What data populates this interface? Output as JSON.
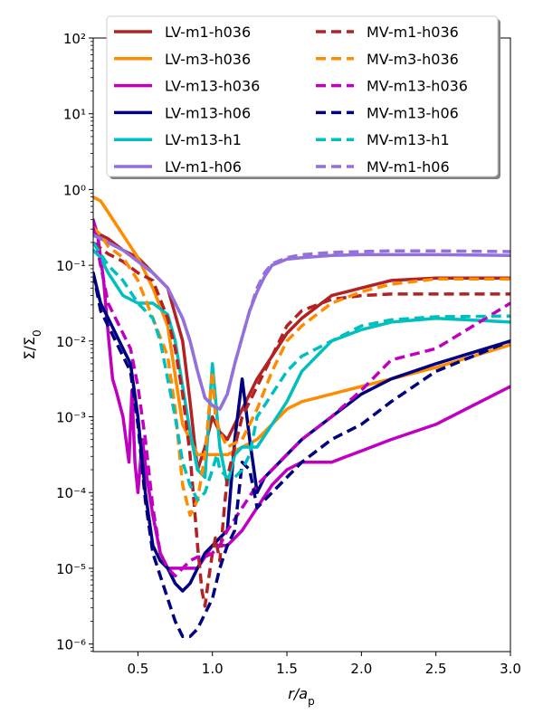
{
  "chart_data": {
    "type": "line",
    "title": "",
    "xlabel": "r/a_p",
    "ylabel": "Σ/Σ_0",
    "xlim": [
      0.2,
      3.0
    ],
    "ylim_log10": [
      -6.1,
      2.0
    ],
    "yscale": "log",
    "x_ticks": [
      0.5,
      1.0,
      1.5,
      2.0,
      2.5,
      3.0
    ],
    "x_tick_labels": [
      "0.5",
      "1.0",
      "1.5",
      "2.0",
      "2.5",
      "3.0"
    ],
    "y_ticks_log10": [
      -6,
      -5,
      -4,
      -3,
      -2,
      -1,
      0,
      1,
      2
    ],
    "y_tick_labels": [
      "10⁻⁶",
      "10⁻⁵",
      "10⁻⁴",
      "10⁻³",
      "10⁻²",
      "10⁻¹",
      "10⁰",
      "10¹",
      "10²"
    ],
    "legend_position": "top",
    "series": [
      {
        "name": "LV-m1-h036",
        "color": "#b22222",
        "dash": "solid",
        "x": [
          0.2,
          0.3,
          0.4,
          0.5,
          0.6,
          0.7,
          0.8,
          0.85,
          0.9,
          0.95,
          1.0,
          1.05,
          1.1,
          1.2,
          1.3,
          1.4,
          1.5,
          1.6,
          1.8,
          2.0,
          2.2,
          2.5,
          3.0
        ],
        "y": [
          -0.55,
          -0.65,
          -0.8,
          -0.9,
          -1.1,
          -1.3,
          -2.0,
          -2.8,
          -3.7,
          -3.4,
          -3.0,
          -3.2,
          -3.3,
          -2.9,
          -2.5,
          -2.2,
          -1.9,
          -1.7,
          -1.4,
          -1.3,
          -1.2,
          -1.17,
          -1.17
        ]
      },
      {
        "name": "LV-m3-h036",
        "color": "#ff8c00",
        "dash": "solid",
        "x": [
          0.2,
          0.25,
          0.3,
          0.4,
          0.5,
          0.6,
          0.7,
          0.8,
          0.9,
          1.0,
          1.1,
          1.2,
          1.3,
          1.4,
          1.5,
          1.6,
          1.8,
          2.0,
          2.2,
          2.5,
          3.0
        ],
        "y": [
          -0.1,
          -0.15,
          -0.3,
          -0.6,
          -0.9,
          -1.3,
          -1.8,
          -3.1,
          -3.5,
          -3.5,
          -3.5,
          -3.4,
          -3.3,
          -3.1,
          -2.9,
          -2.8,
          -2.7,
          -2.6,
          -2.5,
          -2.35,
          -2.05
        ]
      },
      {
        "name": "LV-m13-h036",
        "color": "#c000c0",
        "dash": "solid",
        "x": [
          0.2,
          0.23,
          0.27,
          0.3,
          0.33,
          0.36,
          0.4,
          0.44,
          0.46,
          0.48,
          0.5,
          0.53,
          0.56,
          0.6,
          0.65,
          0.7,
          0.8,
          0.9,
          1.0,
          1.1,
          1.2,
          1.3,
          1.4,
          1.5,
          1.6,
          1.8,
          2.0,
          2.2,
          2.5,
          3.0
        ],
        "y": [
          -0.4,
          -0.6,
          -1.2,
          -1.9,
          -2.5,
          -2.7,
          -3.0,
          -3.6,
          -2.65,
          -3.6,
          -4.0,
          -3.3,
          -3.8,
          -4.3,
          -4.8,
          -5.0,
          -5.0,
          -5.0,
          -4.7,
          -4.7,
          -4.5,
          -4.2,
          -3.9,
          -3.7,
          -3.6,
          -3.6,
          -3.45,
          -3.3,
          -3.1,
          -2.6
        ]
      },
      {
        "name": "LV-m13-h06",
        "color": "#000080",
        "dash": "solid",
        "x": [
          0.2,
          0.25,
          0.3,
          0.35,
          0.4,
          0.45,
          0.5,
          0.55,
          0.6,
          0.65,
          0.7,
          0.75,
          0.8,
          0.85,
          0.9,
          0.95,
          1.0,
          1.05,
          1.1,
          1.15,
          1.2,
          1.25,
          1.3,
          1.35,
          1.4,
          1.5,
          1.6,
          1.8,
          2.0,
          2.2,
          2.5,
          3.0
        ],
        "y": [
          -1.1,
          -1.5,
          -1.7,
          -1.9,
          -2.1,
          -2.3,
          -3.0,
          -4.0,
          -4.7,
          -4.9,
          -5.0,
          -5.2,
          -5.3,
          -5.2,
          -5.0,
          -4.8,
          -4.7,
          -4.6,
          -4.5,
          -3.3,
          -2.5,
          -3.3,
          -4.0,
          -3.8,
          -3.7,
          -3.5,
          -3.3,
          -3.0,
          -2.7,
          -2.5,
          -2.3,
          -2.0
        ]
      },
      {
        "name": "LV-m13-h1",
        "color": "#00bfbf",
        "dash": "solid",
        "x": [
          0.2,
          0.25,
          0.3,
          0.4,
          0.5,
          0.6,
          0.7,
          0.75,
          0.8,
          0.85,
          0.9,
          0.95,
          1.0,
          1.05,
          1.1,
          1.15,
          1.2,
          1.3,
          1.4,
          1.5,
          1.6,
          1.8,
          2.0,
          2.2,
          2.5,
          3.0
        ],
        "y": [
          -0.8,
          -0.9,
          -1.1,
          -1.4,
          -1.5,
          -1.5,
          -1.65,
          -2.0,
          -2.6,
          -3.2,
          -3.7,
          -3.8,
          -2.3,
          -3.4,
          -3.9,
          -3.5,
          -3.4,
          -3.4,
          -3.1,
          -2.8,
          -2.4,
          -2.0,
          -1.85,
          -1.75,
          -1.7,
          -1.75
        ]
      },
      {
        "name": "LV-m1-h06",
        "color": "#9370db",
        "dash": "solid",
        "x": [
          0.2,
          0.3,
          0.4,
          0.5,
          0.6,
          0.7,
          0.8,
          0.85,
          0.9,
          0.95,
          1.0,
          1.05,
          1.1,
          1.15,
          1.2,
          1.25,
          1.3,
          1.35,
          1.4,
          1.5,
          1.6,
          1.8,
          2.0,
          2.2,
          2.5,
          3.0
        ],
        "y": [
          -0.6,
          -0.7,
          -0.8,
          -0.95,
          -1.1,
          -1.3,
          -1.7,
          -2.0,
          -2.4,
          -2.75,
          -2.85,
          -2.9,
          -2.7,
          -2.3,
          -1.95,
          -1.6,
          -1.35,
          -1.15,
          -1.0,
          -0.92,
          -0.9,
          -0.87,
          -0.86,
          -0.86,
          -0.86,
          -0.87
        ]
      },
      {
        "name": "MV-m1-h036",
        "color": "#b22222",
        "dash": "dashed",
        "x": [
          0.2,
          0.3,
          0.4,
          0.5,
          0.6,
          0.7,
          0.75,
          0.8,
          0.85,
          0.9,
          0.93,
          0.95,
          0.97,
          1.0,
          1.02,
          1.05,
          1.08,
          1.1,
          1.15,
          1.2,
          1.3,
          1.4,
          1.5,
          1.6,
          1.8,
          2.0,
          2.2,
          2.5,
          3.0
        ],
        "y": [
          -0.7,
          -0.85,
          -0.95,
          -1.1,
          -1.2,
          -1.7,
          -2.1,
          -2.7,
          -3.5,
          -4.7,
          -5.3,
          -5.5,
          -5.2,
          -4.8,
          -4.6,
          -4.9,
          -4.2,
          -3.8,
          -3.4,
          -3.0,
          -2.6,
          -2.2,
          -1.8,
          -1.6,
          -1.45,
          -1.4,
          -1.38,
          -1.38,
          -1.38
        ]
      },
      {
        "name": "MV-m3-h036",
        "color": "#ff8c00",
        "dash": "dashed",
        "x": [
          0.2,
          0.25,
          0.3,
          0.4,
          0.5,
          0.6,
          0.7,
          0.75,
          0.8,
          0.85,
          0.9,
          0.95,
          1.0,
          1.02,
          1.05,
          1.1,
          1.2,
          1.3,
          1.4,
          1.5,
          1.6,
          1.8,
          2.0,
          2.2,
          2.5,
          3.0
        ],
        "y": [
          -0.5,
          -0.6,
          -0.75,
          -0.9,
          -1.2,
          -1.7,
          -2.2,
          -2.9,
          -3.9,
          -4.3,
          -4.1,
          -3.5,
          -2.4,
          -3.0,
          -3.2,
          -3.4,
          -3.3,
          -2.9,
          -2.4,
          -2.0,
          -1.8,
          -1.5,
          -1.35,
          -1.25,
          -1.18,
          -1.18
        ]
      },
      {
        "name": "MV-m13-h036",
        "color": "#c000c0",
        "dash": "dashed",
        "x": [
          0.2,
          0.25,
          0.3,
          0.35,
          0.4,
          0.45,
          0.5,
          0.55,
          0.6,
          0.65,
          0.7,
          0.75,
          0.8,
          0.85,
          0.9,
          0.95,
          1.0,
          1.05,
          1.1,
          1.2,
          1.3,
          1.4,
          1.5,
          1.6,
          1.8,
          2.0,
          2.2,
          2.5,
          3.0
        ],
        "y": [
          -0.5,
          -1.0,
          -1.5,
          -1.7,
          -1.9,
          -2.1,
          -2.6,
          -3.3,
          -4.2,
          -4.8,
          -5.0,
          -5.1,
          -5.0,
          -4.9,
          -4.85,
          -4.85,
          -4.8,
          -4.7,
          -4.5,
          -4.2,
          -3.9,
          -3.7,
          -3.5,
          -3.3,
          -3.0,
          -2.65,
          -2.25,
          -2.1,
          -1.5
        ]
      },
      {
        "name": "MV-m13-h06",
        "color": "#000080",
        "dash": "dashed",
        "x": [
          0.2,
          0.25,
          0.3,
          0.35,
          0.4,
          0.45,
          0.5,
          0.55,
          0.6,
          0.65,
          0.7,
          0.75,
          0.8,
          0.85,
          0.9,
          0.95,
          1.0,
          1.05,
          1.1,
          1.15,
          1.2,
          1.25,
          1.3,
          1.4,
          1.5,
          1.6,
          1.8,
          2.0,
          2.2,
          2.5,
          3.0
        ],
        "y": [
          -1.1,
          -1.6,
          -1.8,
          -2.0,
          -2.2,
          -2.4,
          -3.1,
          -4.1,
          -4.8,
          -5.1,
          -5.4,
          -5.7,
          -5.9,
          -5.9,
          -5.8,
          -5.6,
          -5.4,
          -5.0,
          -4.7,
          -4.5,
          -3.6,
          -3.7,
          -4.2,
          -4.0,
          -3.8,
          -3.6,
          -3.3,
          -3.1,
          -2.8,
          -2.4,
          -2.0
        ]
      },
      {
        "name": "MV-m13-h1",
        "color": "#00bfbf",
        "dash": "dashed",
        "x": [
          0.2,
          0.25,
          0.3,
          0.4,
          0.5,
          0.6,
          0.65,
          0.7,
          0.75,
          0.8,
          0.85,
          0.9,
          0.95,
          1.0,
          1.03,
          1.05,
          1.1,
          1.15,
          1.2,
          1.25,
          1.3,
          1.4,
          1.5,
          1.6,
          1.8,
          2.0,
          2.2,
          2.5,
          3.0
        ],
        "y": [
          -0.7,
          -0.85,
          -1.0,
          -1.2,
          -1.5,
          -1.7,
          -2.0,
          -2.5,
          -3.0,
          -3.6,
          -3.9,
          -4.1,
          -4.0,
          -3.7,
          -3.5,
          -3.7,
          -3.8,
          -3.8,
          -3.7,
          -3.5,
          -3.0,
          -2.7,
          -2.4,
          -2.2,
          -2.0,
          -1.8,
          -1.72,
          -1.68,
          -1.67
        ]
      },
      {
        "name": "MV-m1-h06",
        "color": "#9370db",
        "dash": "dashed",
        "x": [
          0.2,
          0.3,
          0.4,
          0.5,
          0.6,
          0.7,
          0.8,
          0.85,
          0.9,
          0.95,
          1.0,
          1.05,
          1.1,
          1.15,
          1.2,
          1.25,
          1.3,
          1.35,
          1.4,
          1.5,
          1.6,
          1.8,
          2.0,
          2.2,
          2.5,
          3.0
        ],
        "y": [
          -0.6,
          -0.7,
          -0.8,
          -0.95,
          -1.1,
          -1.3,
          -1.7,
          -2.0,
          -2.4,
          -2.75,
          -2.85,
          -2.9,
          -2.7,
          -2.3,
          -1.95,
          -1.6,
          -1.3,
          -1.1,
          -0.98,
          -0.9,
          -0.86,
          -0.83,
          -0.82,
          -0.81,
          -0.81,
          -0.82
        ]
      }
    ]
  }
}
